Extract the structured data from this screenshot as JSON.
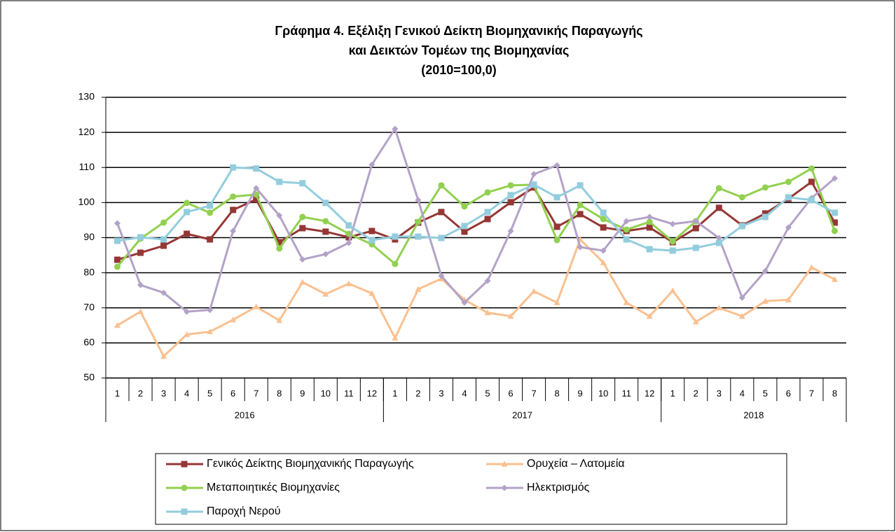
{
  "chart_data": {
    "type": "line",
    "title": [
      "Γράφημα 4. Εξέλιξη Γενικού  Δείκτη Βιομηχανικής  Παραγωγής",
      "και Δεικτών Τομέων  της Βιομηχανίας",
      "(2010=100,0)"
    ],
    "categories": [
      "1",
      "2",
      "3",
      "4",
      "5",
      "6",
      "7",
      "8",
      "9",
      "10",
      "11",
      "12",
      "1",
      "2",
      "3",
      "4",
      "5",
      "6",
      "7",
      "8",
      "9",
      "10",
      "11",
      "12",
      "1",
      "2",
      "3",
      "4",
      "5",
      "6",
      "7",
      "8"
    ],
    "groups": [
      {
        "label": "2016",
        "size": 12
      },
      {
        "label": "2017",
        "size": 12
      },
      {
        "label": "2018",
        "size": 8
      }
    ],
    "ylim": [
      50,
      130
    ],
    "yticks": [
      50,
      60,
      70,
      80,
      90,
      100,
      110,
      120,
      130
    ],
    "grid": true,
    "series": [
      {
        "name": "Γενικός Δείκτης Βιομηχανικής Παραγωγής",
        "color": "#953735",
        "marker": "square",
        "values": [
          83.7,
          85.7,
          87.7,
          91.1,
          89.5,
          97.9,
          100.9,
          88.7,
          92.7,
          91.7,
          90.1,
          91.9,
          89.5,
          94.3,
          97.3,
          91.7,
          95.3,
          100.1,
          104.3,
          93.1,
          96.7,
          92.9,
          91.9,
          92.9,
          88.7,
          92.7,
          98.5,
          93.5,
          96.9,
          101.1,
          105.9,
          94.3
        ]
      },
      {
        "name": "Ορυχεία – Λατομεία",
        "color": "#fac090",
        "marker": "triangle",
        "values": [
          65.0,
          68.9,
          56.2,
          62.4,
          63.2,
          66.6,
          70.3,
          66.4,
          77.3,
          73.9,
          76.9,
          74.1,
          61.4,
          75.3,
          78.3,
          72.3,
          68.6,
          67.6,
          74.7,
          71.5,
          89.5,
          82.9,
          71.5,
          67.6,
          74.9,
          66.0,
          70.0,
          67.6,
          71.9,
          72.3,
          81.5,
          78.1
        ]
      },
      {
        "name": "Μεταποιητικές Βιομηχανίες",
        "color": "#92d050",
        "marker": "circle",
        "values": [
          81.7,
          89.7,
          94.3,
          99.9,
          97.1,
          101.7,
          102.3,
          86.9,
          95.9,
          94.7,
          91.1,
          88.1,
          82.5,
          94.5,
          104.9,
          98.9,
          102.9,
          104.9,
          105.1,
          89.3,
          99.3,
          95.3,
          92.3,
          94.5,
          88.9,
          94.7,
          104.1,
          101.5,
          104.3,
          105.9,
          109.7,
          91.9
        ]
      },
      {
        "name": "Ηλεκτρισμός",
        "color": "#b3a2c7",
        "marker": "diamond",
        "values": [
          94.1,
          76.5,
          74.3,
          68.9,
          69.4,
          91.9,
          104.1,
          96.3,
          83.8,
          85.3,
          88.5,
          110.8,
          121.0,
          100.7,
          79.1,
          71.5,
          77.7,
          91.9,
          108.1,
          110.6,
          87.3,
          86.3,
          94.7,
          95.9,
          93.9,
          94.7,
          89.9,
          72.9,
          80.5,
          92.9,
          101.3,
          106.9
        ]
      },
      {
        "name": "Παροχή Νερού",
        "color": "#93cddd",
        "marker": "square",
        "values": [
          89.1,
          90.1,
          89.5,
          97.3,
          99.1,
          110.0,
          109.7,
          105.9,
          105.5,
          99.9,
          93.5,
          89.3,
          90.3,
          90.3,
          89.9,
          93.3,
          97.3,
          102.1,
          105.1,
          101.5,
          104.9,
          97.1,
          89.5,
          86.7,
          86.3,
          87.1,
          88.5,
          93.3,
          95.9,
          101.5,
          100.7,
          97.1
        ]
      }
    ]
  }
}
